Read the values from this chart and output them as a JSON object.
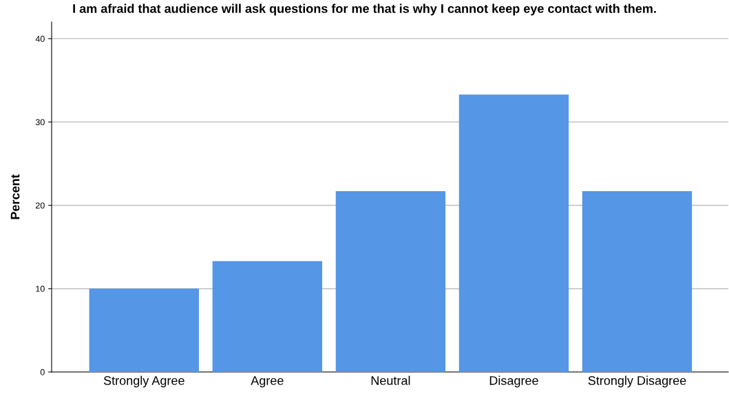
{
  "chart_data": {
    "type": "bar",
    "title": "I am afraid that audience will ask questions for me that is why I cannot keep eye contact with them.",
    "ylabel": "Percent",
    "categories": [
      "Strongly Agree",
      "Agree",
      "Neutral",
      "Disagree",
      "Strongly Disagree"
    ],
    "values": [
      10,
      13.3,
      21.7,
      33.3,
      21.7
    ],
    "color": "#5596e6",
    "ylim": [
      0,
      42
    ],
    "yticks": [
      0,
      10,
      20,
      30,
      40
    ],
    "grid": "y",
    "legend": false
  }
}
